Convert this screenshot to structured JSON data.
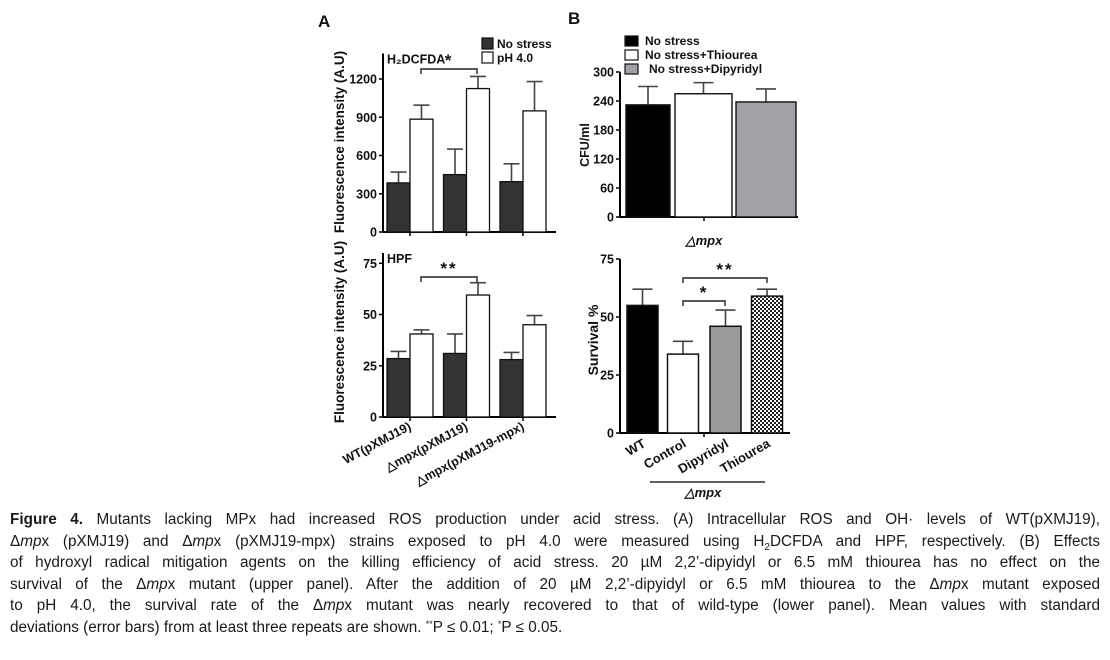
{
  "panel_labels": {
    "a": "A",
    "b": "B"
  },
  "chart_data": [
    {
      "id": "A-top",
      "type": "bar",
      "title": "H₂DCFDA",
      "ylabel": "Fluorescence intensity (A.U)",
      "xlabel": "",
      "ylim": [
        0,
        1400
      ],
      "yticks": [
        0,
        300,
        600,
        900,
        1200
      ],
      "categories": [
        "WT(pXMJ19)",
        "△mpx(pXMJ19)",
        "△mpx(pXMJ19-mpx)"
      ],
      "series": [
        {
          "name": "No stress",
          "color": "#333333",
          "values": [
            385,
            450,
            395
          ],
          "errors": [
            85,
            200,
            140
          ]
        },
        {
          "name": "pH 4.0",
          "color": "#ffffff",
          "values": [
            885,
            1125,
            950
          ],
          "errors": [
            110,
            95,
            230
          ]
        }
      ],
      "legend": "top-right",
      "annotations": [
        {
          "label": "*",
          "from": "WT(pXMJ19) pH 4.0",
          "to": "△mpx(pXMJ19) pH 4.0"
        }
      ]
    },
    {
      "id": "A-bottom",
      "type": "bar",
      "title": "HPF",
      "ylabel": "Fluorescence intensity (A.U)",
      "xlabel": "",
      "ylim": [
        0,
        80
      ],
      "yticks": [
        0,
        25,
        50,
        75
      ],
      "categories": [
        "WT(pXMJ19)",
        "△mpx(pXMJ19)",
        "△mpx(pXMJ19-mpx)"
      ],
      "series": [
        {
          "name": "No stress",
          "color": "#333333",
          "values": [
            28.5,
            31,
            28
          ],
          "errors": [
            3.5,
            9.5,
            3.5
          ]
        },
        {
          "name": "pH 4.0",
          "color": "#ffffff",
          "values": [
            40.5,
            59.5,
            45
          ],
          "errors": [
            2,
            6,
            4.5
          ]
        }
      ],
      "annotations": [
        {
          "label": "**",
          "from": "WT(pXMJ19) pH 4.0",
          "to": "△mpx(pXMJ19) pH 4.0"
        }
      ]
    },
    {
      "id": "B-top",
      "type": "bar",
      "title": "",
      "ylabel": "CFU/ml",
      "xlabel": "△mpx",
      "ylim": [
        0,
        300
      ],
      "yticks": [
        0,
        60,
        120,
        180,
        240,
        300
      ],
      "categories": [
        "No stress",
        "No stress+Thiourea",
        "No stress+Dipyridyl"
      ],
      "values": [
        232,
        255,
        238
      ],
      "errors": [
        38,
        23,
        27
      ],
      "colors": [
        "#000000",
        "#ffffff",
        "#a2a2a6"
      ],
      "legend": "top-left"
    },
    {
      "id": "B-bottom",
      "type": "bar",
      "title": "",
      "ylabel": "Survival %",
      "xlabel": "△mpx",
      "ylim": [
        0,
        75
      ],
      "yticks": [
        0,
        25,
        50,
        75
      ],
      "categories": [
        "WT",
        "Control",
        "Dipyridyl",
        "Thiourea"
      ],
      "values": [
        55,
        34,
        46,
        59
      ],
      "errors": [
        7,
        5.5,
        7,
        3
      ],
      "colors": [
        "#000000",
        "#ffffff",
        "#9c9c9c",
        "checkered"
      ],
      "group_label": "△mpx",
      "annotations": [
        {
          "label": "*",
          "from": "Control",
          "to": "Dipyridyl"
        },
        {
          "label": "**",
          "from": "Control",
          "to": "Thiourea"
        }
      ]
    }
  ],
  "caption": {
    "lines": [
      [
        {
          "t": "b",
          "v": "Figure 4."
        },
        {
          "t": "n",
          "v": " Mutants lacking MPx had increased ROS production under acid stress. (A) Intracellular ROS and OH· levels of WT(pXMJ19),"
        }
      ],
      [
        {
          "t": "n",
          "v": "Δ"
        },
        {
          "t": "i",
          "v": "mp"
        },
        {
          "t": "n",
          "v": "x (pXMJ19) and Δ"
        },
        {
          "t": "i",
          "v": "mp"
        },
        {
          "t": "n",
          "v": "x (pXMJ19-mpx) strains exposed to pH 4.0 were measured using H"
        },
        {
          "t": "sub",
          "v": "2"
        },
        {
          "t": "n",
          "v": "DCFDA and HPF, respectively. (B) Effects"
        }
      ],
      [
        {
          "t": "n",
          "v": "of hydroxyl radical mitigation agents on the killing efficiency of acid stress. 20 µM 2,2’-dipyidyl or 6.5 mM thiourea has no effect on the"
        }
      ],
      [
        {
          "t": "n",
          "v": "survival of the Δ"
        },
        {
          "t": "i",
          "v": "mp"
        },
        {
          "t": "n",
          "v": "x mutant (upper panel). After the addition of 20 µM 2,2’-dipyidyl or 6.5 mM thiourea to the Δ"
        },
        {
          "t": "i",
          "v": "mp"
        },
        {
          "t": "n",
          "v": "x mutant exposed"
        }
      ],
      [
        {
          "t": "n",
          "v": "to pH 4.0, the survival rate of the Δ"
        },
        {
          "t": "i",
          "v": "mp"
        },
        {
          "t": "n",
          "v": "x mutant was nearly recovered to that of wild-type (lower panel). Mean values with standard"
        }
      ],
      [
        {
          "t": "n",
          "v": "deviations (error bars) from at least three repeats are shown. "
        },
        {
          "t": "sup",
          "v": "**"
        },
        {
          "t": "n",
          "v": "P ≤ 0.01; "
        },
        {
          "t": "sup",
          "v": "*"
        },
        {
          "t": "n",
          "v": "P ≤ 0.05."
        }
      ]
    ]
  }
}
